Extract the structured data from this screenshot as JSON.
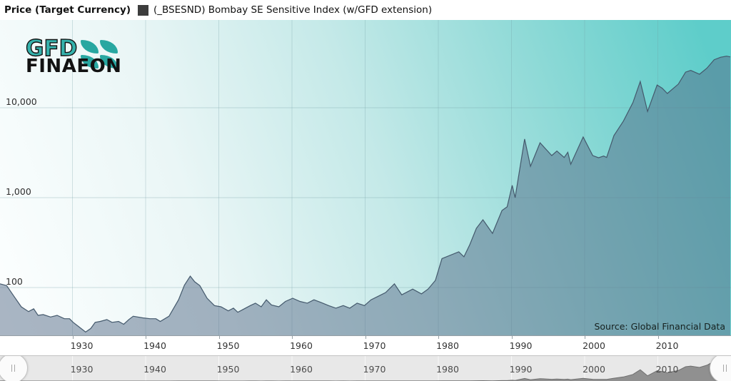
{
  "header": {
    "title": "Price (Target Currency)",
    "legend": {
      "swatch_color": "#3d3d3d",
      "label": "(_BSESND) Bombay SE Sensitive Index (w/GFD extension)"
    }
  },
  "logo": {
    "line1": "GFD",
    "line2": "FINAEON",
    "teal": "#2fa9a3"
  },
  "chart_data": {
    "type": "area",
    "title": "Price (Target Currency)",
    "series_name": "(_BSESND) Bombay SE Sensitive Index (w/GFD extension)",
    "source_note": "Source: Global Financial Data",
    "x_axis": {
      "range": [
        1920,
        2020
      ],
      "ticks": [
        1930,
        1940,
        1950,
        1960,
        1970,
        1980,
        1990,
        2000,
        2010
      ]
    },
    "y_axis": {
      "scale": "log",
      "range": [
        29,
        95000
      ],
      "ticks": [
        {
          "value": 100,
          "label": "100"
        },
        {
          "value": 1000,
          "label": "1,000"
        },
        {
          "value": 10000,
          "label": "10,000"
        }
      ]
    },
    "grid": true,
    "legend_position": "top",
    "points": [
      [
        1920.1,
        110
      ],
      [
        1921,
        105
      ],
      [
        1922,
        80
      ],
      [
        1923,
        61
      ],
      [
        1924,
        54
      ],
      [
        1924.7,
        58
      ],
      [
        1925.3,
        49
      ],
      [
        1926,
        50
      ],
      [
        1927,
        47
      ],
      [
        1927.9,
        49
      ],
      [
        1928.9,
        45
      ],
      [
        1929.6,
        45
      ],
      [
        1930.1,
        41
      ],
      [
        1930.8,
        37
      ],
      [
        1931.8,
        32
      ],
      [
        1932.5,
        35
      ],
      [
        1933.1,
        41
      ],
      [
        1933.8,
        42
      ],
      [
        1934.7,
        44
      ],
      [
        1935.4,
        41
      ],
      [
        1936.3,
        42
      ],
      [
        1937,
        39
      ],
      [
        1937.7,
        44
      ],
      [
        1938.3,
        48
      ],
      [
        1939.6,
        46
      ],
      [
        1940.6,
        45
      ],
      [
        1941.4,
        45
      ],
      [
        1942,
        42
      ],
      [
        1943.2,
        48
      ],
      [
        1944.5,
        73
      ],
      [
        1945.3,
        106
      ],
      [
        1946.1,
        134
      ],
      [
        1946.7,
        116
      ],
      [
        1947.4,
        105
      ],
      [
        1948.4,
        76
      ],
      [
        1949.4,
        63
      ],
      [
        1950.3,
        61
      ],
      [
        1951.3,
        55
      ],
      [
        1952,
        59
      ],
      [
        1952.6,
        53
      ],
      [
        1953.3,
        57
      ],
      [
        1954.3,
        63
      ],
      [
        1955,
        67
      ],
      [
        1955.8,
        61
      ],
      [
        1956.5,
        73
      ],
      [
        1957.2,
        64
      ],
      [
        1958.2,
        61
      ],
      [
        1959.1,
        70
      ],
      [
        1960.1,
        76
      ],
      [
        1961.1,
        70
      ],
      [
        1962.1,
        67
      ],
      [
        1963,
        73
      ],
      [
        1964,
        68
      ],
      [
        1965,
        63
      ],
      [
        1966,
        59
      ],
      [
        1967,
        63
      ],
      [
        1967.9,
        59
      ],
      [
        1968.9,
        67
      ],
      [
        1969.9,
        63
      ],
      [
        1970.8,
        73
      ],
      [
        1971.8,
        80
      ],
      [
        1972.8,
        88
      ],
      [
        1974,
        110
      ],
      [
        1975,
        83
      ],
      [
        1976.5,
        96
      ],
      [
        1977.7,
        85
      ],
      [
        1978.6,
        96
      ],
      [
        1979.6,
        120
      ],
      [
        1980.5,
        210
      ],
      [
        1982.8,
        250
      ],
      [
        1983.5,
        220
      ],
      [
        1984.3,
        300
      ],
      [
        1985.2,
        456
      ],
      [
        1986.1,
        568
      ],
      [
        1987.4,
        400
      ],
      [
        1988.7,
        720
      ],
      [
        1989.4,
        790
      ],
      [
        1990.1,
        1370
      ],
      [
        1990.5,
        1000
      ],
      [
        1991.8,
        4480
      ],
      [
        1992.6,
        2230
      ],
      [
        1993.9,
        4080
      ],
      [
        1995.5,
        2940
      ],
      [
        1996.2,
        3300
      ],
      [
        1997.2,
        2800
      ],
      [
        1997.7,
        3200
      ],
      [
        1998.1,
        2350
      ],
      [
        1999.8,
        4730
      ],
      [
        2001.1,
        2940
      ],
      [
        2001.9,
        2780
      ],
      [
        2002.6,
        2900
      ],
      [
        2003,
        2800
      ],
      [
        2004,
        4900
      ],
      [
        2005.3,
        7100
      ],
      [
        2006.6,
        11400
      ],
      [
        2007.6,
        19600
      ],
      [
        2008.6,
        9100
      ],
      [
        2009.9,
        17900
      ],
      [
        2010.6,
        16500
      ],
      [
        2011.3,
        14400
      ],
      [
        2012.8,
        18300
      ],
      [
        2013.8,
        24900
      ],
      [
        2014.5,
        26000
      ],
      [
        2015.7,
        23600
      ],
      [
        2016.7,
        27500
      ],
      [
        2017.7,
        34200
      ],
      [
        2018.6,
        36500
      ],
      [
        2019.4,
        37500
      ],
      [
        2019.9,
        36800
      ]
    ],
    "colors": {
      "area_fill": "#566c87",
      "area_opacity": 0.5,
      "line": "#44596c",
      "grid_line": "#6f9aa2",
      "bg_gradient": [
        "#fdffff",
        "#5ecdca"
      ],
      "nav_fill": "#909090",
      "nav_line": "#6e6e6e",
      "nav_grid": "#f7f7f7",
      "nav_bg": "#e8e8e8"
    }
  },
  "navigator": {
    "ticks": [
      1930,
      1940,
      1950,
      1960,
      1970,
      1980,
      1990,
      2000,
      2010
    ]
  }
}
